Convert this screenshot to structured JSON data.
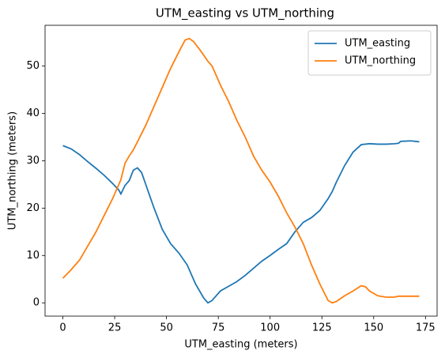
{
  "chart_data": {
    "type": "line",
    "title": "UTM_easting vs UTM_northing",
    "xlabel": "UTM_easting (meters)",
    "ylabel": "UTM_northing (meters)",
    "xlim": [
      -8.6,
      180.6
    ],
    "ylim": [
      -2.8,
      58.6
    ],
    "xticks": [
      0,
      25,
      50,
      75,
      100,
      125,
      150,
      175
    ],
    "yticks": [
      0,
      10,
      20,
      30,
      40,
      50
    ],
    "legend": "upper right",
    "series": [
      {
        "name": "UTM_easting",
        "color": "#1f77b4",
        "x": [
          0,
          4,
          8,
          12,
          16,
          20,
          24,
          27,
          28,
          30,
          32,
          34,
          36,
          38,
          40,
          44,
          48,
          52,
          56,
          60,
          64,
          68,
          70,
          72,
          76,
          80,
          84,
          88,
          92,
          96,
          100,
          104,
          108,
          112,
          116,
          120,
          124,
          128,
          130,
          132,
          136,
          140,
          144,
          148,
          152,
          156,
          160,
          162,
          163,
          168,
          172
        ],
        "values": [
          33.2,
          32.5,
          31.3,
          29.8,
          28.4,
          26.9,
          25.2,
          23.8,
          23.0,
          24.8,
          25.8,
          28.0,
          28.5,
          27.5,
          25,
          20,
          15.5,
          12.5,
          10.5,
          8,
          4,
          1,
          0,
          0.5,
          2.5,
          3.5,
          4.5,
          5.8,
          7.3,
          8.8,
          10,
          11.3,
          12.5,
          15,
          17,
          18,
          19.5,
          22,
          23.5,
          25.5,
          29,
          31.8,
          33.4,
          33.6,
          33.5,
          33.5,
          33.6,
          33.7,
          34.1,
          34.2,
          34.0
        ]
      },
      {
        "name": "UTM_northing",
        "color": "#ff7f0e",
        "x": [
          0,
          4,
          8,
          12,
          16,
          20,
          24,
          28,
          30,
          32,
          34,
          36,
          40,
          44,
          48,
          52,
          56,
          59,
          61,
          63,
          66,
          70,
          72,
          76,
          80,
          84,
          88,
          92,
          96,
          100,
          104,
          108,
          112,
          116,
          120,
          124,
          128,
          130,
          132,
          136,
          140,
          144,
          146,
          148,
          152,
          156,
          160,
          162,
          168,
          172
        ],
        "values": [
          5.2,
          7,
          9,
          12,
          15,
          18.5,
          22,
          26,
          29.5,
          31,
          32.3,
          34,
          37.5,
          41.5,
          45.5,
          49.5,
          53,
          55.5,
          55.8,
          55.2,
          53.5,
          51,
          50,
          46,
          42.5,
          38.5,
          35,
          31,
          28,
          25.5,
          22.5,
          19,
          16,
          12.5,
          8,
          4,
          0.5,
          0,
          0.3,
          1.5,
          2.5,
          3.6,
          3.4,
          2.5,
          1.5,
          1.2,
          1.2,
          1.4,
          1.4,
          1.4
        ]
      }
    ]
  }
}
